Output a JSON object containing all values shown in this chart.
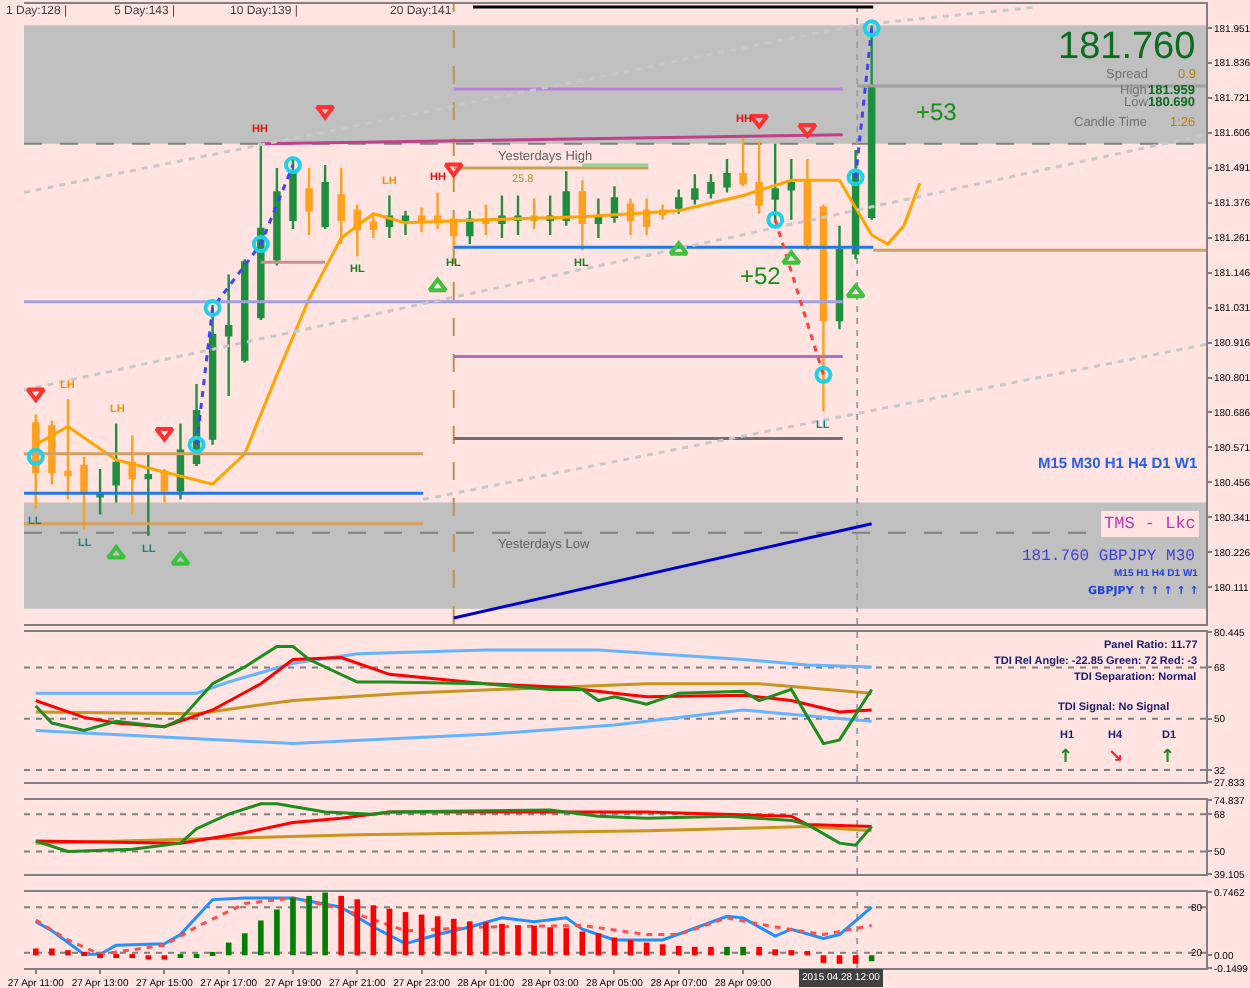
{
  "chart_data": [
    {
      "type": "candlestick",
      "x": [
        "2015-04-27T11:00",
        "2015-04-27T11:30",
        "2015-04-27T12:00",
        "2015-04-27T12:30",
        "2015-04-27T13:00",
        "2015-04-27T13:30",
        "2015-04-27T14:00",
        "2015-04-27T14:30",
        "2015-04-27T15:00",
        "2015-04-27T15:30",
        "2015-04-27T16:00",
        "2015-04-27T16:30",
        "2015-04-27T17:00",
        "2015-04-27T17:30",
        "2015-04-27T18:00",
        "2015-04-27T18:30",
        "2015-04-27T19:00",
        "2015-04-27T19:30",
        "2015-04-27T20:00",
        "2015-04-27T20:30",
        "2015-04-27T21:00",
        "2015-04-27T21:30",
        "2015-04-27T22:00",
        "2015-04-27T22:30",
        "2015-04-27T23:00",
        "2015-04-27T23:30",
        "2015-04-28T00:00",
        "2015-04-28T00:30",
        "2015-04-28T01:00",
        "2015-04-28T01:30",
        "2015-04-28T02:00",
        "2015-04-28T02:30",
        "2015-04-28T03:00",
        "2015-04-28T03:30",
        "2015-04-28T04:00",
        "2015-04-28T04:30",
        "2015-04-28T05:00",
        "2015-04-28T05:30",
        "2015-04-28T06:00",
        "2015-04-28T06:30",
        "2015-04-28T07:00",
        "2015-04-28T07:30",
        "2015-04-28T08:00",
        "2015-04-28T08:30",
        "2015-04-28T09:00",
        "2015-04-28T09:30",
        "2015-04-28T10:00",
        "2015-04-28T10:30",
        "2015-04-28T11:00",
        "2015-04-28T11:30",
        "2015-04-28T12:00",
        "2015-04-28T12:30",
        "2015-04-28T13:00"
      ],
      "ohlc": [
        [
          180.65,
          180.68,
          180.37,
          180.49
        ],
        [
          180.64,
          180.66,
          180.45,
          180.49
        ],
        [
          180.49,
          180.73,
          180.4,
          180.48
        ],
        [
          180.51,
          180.54,
          180.3,
          180.42
        ],
        [
          180.41,
          180.5,
          180.35,
          180.42
        ],
        [
          180.45,
          180.65,
          180.39,
          180.52
        ],
        [
          180.52,
          180.61,
          180.35,
          180.47
        ],
        [
          180.47,
          180.55,
          180.28,
          180.48
        ],
        [
          180.49,
          180.5,
          180.39,
          180.43
        ],
        [
          180.43,
          180.65,
          180.4,
          180.56
        ],
        [
          180.52,
          180.78,
          180.51,
          180.69
        ],
        [
          180.6,
          181.04,
          180.58,
          180.94
        ],
        [
          180.94,
          181.14,
          180.74,
          180.97
        ],
        [
          180.86,
          181.19,
          180.85,
          181.18
        ],
        [
          181.0,
          181.57,
          180.99,
          181.29
        ],
        [
          181.19,
          181.49,
          181.17,
          181.41
        ],
        [
          181.32,
          181.52,
          181.29,
          181.47
        ],
        [
          181.42,
          181.49,
          181.27,
          181.35
        ],
        [
          181.3,
          181.5,
          181.29,
          181.44
        ],
        [
          181.4,
          181.49,
          181.24,
          181.32
        ],
        [
          181.35,
          181.37,
          181.2,
          181.29
        ],
        [
          181.31,
          181.34,
          181.26,
          181.29
        ],
        [
          181.3,
          181.4,
          181.26,
          181.33
        ],
        [
          181.32,
          181.35,
          181.27,
          181.33
        ],
        [
          181.33,
          181.36,
          181.28,
          181.32
        ],
        [
          181.33,
          181.41,
          181.29,
          181.32
        ],
        [
          181.32,
          181.33,
          181.22,
          181.27
        ],
        [
          181.27,
          181.35,
          181.24,
          181.32
        ],
        [
          181.32,
          181.37,
          181.27,
          181.31
        ],
        [
          181.31,
          181.4,
          181.26,
          181.33
        ],
        [
          181.32,
          181.4,
          181.27,
          181.33
        ],
        [
          181.33,
          181.39,
          181.29,
          181.32
        ],
        [
          181.32,
          181.4,
          181.27,
          181.33
        ],
        [
          181.32,
          181.48,
          181.3,
          181.41
        ],
        [
          181.41,
          181.45,
          181.22,
          181.31
        ],
        [
          181.31,
          181.39,
          181.26,
          181.33
        ],
        [
          181.33,
          181.43,
          181.31,
          181.39
        ],
        [
          181.37,
          181.39,
          181.27,
          181.32
        ],
        [
          181.35,
          181.39,
          181.27,
          181.3
        ],
        [
          181.35,
          181.37,
          181.32,
          181.34
        ],
        [
          181.36,
          181.42,
          181.34,
          181.39
        ],
        [
          181.39,
          181.47,
          181.37,
          181.42
        ],
        [
          181.41,
          181.47,
          181.39,
          181.44
        ],
        [
          181.43,
          181.52,
          181.41,
          181.47
        ],
        [
          181.47,
          181.6,
          181.43,
          181.44
        ],
        [
          181.44,
          181.58,
          181.34,
          181.37
        ],
        [
          181.39,
          181.57,
          181.31,
          181.42
        ],
        [
          181.42,
          181.52,
          181.32,
          181.44
        ],
        [
          181.44,
          181.52,
          181.22,
          181.24
        ],
        [
          181.36,
          181.37,
          180.69,
          180.99
        ],
        [
          180.99,
          181.3,
          180.96,
          181.22
        ],
        [
          181.21,
          181.55,
          181.19,
          181.47
        ],
        [
          181.33,
          181.959,
          181.32,
          181.76
        ]
      ],
      "colors": [
        "#ffa020",
        "#ffa020",
        "#ffa020",
        "#ffa020",
        "#1f8f3f",
        "#1f8f3f",
        "#ffa020",
        "#1f8f3f",
        "#ffa020",
        "#1f8f3f",
        "#1f8f3f",
        "#1f8f3f",
        "#1f8f3f",
        "#1f8f3f",
        "#1f8f3f",
        "#1f8f3f",
        "#1f8f3f",
        "#ffa020",
        "#1f8f3f",
        "#ffa020",
        "#ffa020",
        "#ffa020",
        "#1f8f3f",
        "#1f8f3f",
        "#ffa020",
        "#ffa020",
        "#ffa020",
        "#1f8f3f",
        "#ffa020",
        "#1f8f3f",
        "#1f8f3f",
        "#ffa020",
        "#1f8f3f",
        "#1f8f3f",
        "#ffa020",
        "#1f8f3f",
        "#1f8f3f",
        "#ffa020",
        "#ffa020",
        "#ffa020",
        "#1f8f3f",
        "#1f8f3f",
        "#1f8f3f",
        "#1f8f3f",
        "#ffa020",
        "#ffa020",
        "#1f8f3f",
        "#1f8f3f",
        "#ffa020",
        "#ffa020",
        "#1f8f3f",
        "#1f8f3f",
        "#1f8f3f"
      ],
      "xlim": [
        "2015-04-27T10:38",
        "2015-04-28T23:24"
      ],
      "ylim": [
        179.99,
        182.03
      ],
      "yticks": [
        181.951,
        181.836,
        181.721,
        181.606,
        181.491,
        181.376,
        181.261,
        181.146,
        181.031,
        180.916,
        180.801,
        180.686,
        180.571,
        180.456,
        180.341,
        180.226,
        180.111
      ],
      "tick_labels": "y",
      "bands": [
        {
          "axis": "y",
          "from": 181.57,
          "to": 181.96,
          "color": "#c0c0c0"
        },
        {
          "axis": "y",
          "from": 180.04,
          "to": 180.39,
          "color": "#c0c0c0"
        }
      ],
      "ref_lines": [
        {
          "axis": "y",
          "value": 181.57,
          "label": "Yesterdays High",
          "line_style": "dashed",
          "color": "#808080"
        },
        {
          "axis": "y",
          "value": 180.29,
          "label": "Yesterdays Low",
          "line_style": "dashed",
          "color": "#808080"
        },
        {
          "axis": "x",
          "value": "2015-04-28T00:00",
          "line_style": "dashed",
          "color": "#c09050"
        },
        {
          "axis": "x",
          "value": "2015-04-28T12:33",
          "line_style": "dotted",
          "color": "#a0a0a0"
        }
      ],
      "series": [
        {
          "type": "line",
          "color": "#ffa500",
          "x": [
            "2015-04-27T11:00",
            "2015-04-27T12:00",
            "2015-04-27T13:30",
            "2015-04-27T15:00",
            "2015-04-27T16:30",
            "2015-04-27T17:30",
            "2015-04-27T18:30",
            "2015-04-27T19:30",
            "2015-04-27T20:30",
            "2015-04-27T21:30",
            "2015-04-27T22:30",
            "2015-04-28T01:00",
            "2015-04-28T04:00",
            "2015-04-28T07:00",
            "2015-04-28T09:00",
            "2015-04-28T10:30",
            "2015-04-28T12:00",
            "2015-04-28T13:00",
            "2015-04-28T13:30",
            "2015-04-28T14:00",
            "2015-04-28T14:30"
          ],
          "values": [
            180.58,
            180.64,
            180.53,
            180.49,
            180.45,
            180.55,
            180.81,
            181.06,
            181.26,
            181.34,
            181.31,
            181.32,
            181.33,
            181.35,
            181.4,
            181.45,
            181.45,
            181.27,
            181.24,
            181.3,
            181.44
          ]
        },
        {
          "type": "line",
          "color": "#0000cd",
          "x": [
            "2015-04-28T00:00",
            "2015-04-28T13:00"
          ],
          "values": [
            180.01,
            180.32
          ]
        },
        {
          "type": "line",
          "color": "#1e78e6",
          "x": [
            "2015-04-28T00:00",
            "2015-04-28T13:03"
          ],
          "values": [
            181.23,
            181.23
          ]
        },
        {
          "type": "line",
          "color": "#d2a060",
          "x": [
            "2015-04-28T13:03",
            "2015-04-28T23:24"
          ],
          "values": [
            181.22,
            181.22
          ]
        },
        {
          "type": "line",
          "color": "#1e78e6",
          "x": [
            "2015-04-27T10:38",
            "2015-04-27T23:03"
          ],
          "values": [
            180.42,
            180.42
          ]
        },
        {
          "type": "line",
          "color": "#d2a060",
          "x": [
            "2015-04-27T10:38",
            "2015-04-27T23:03"
          ],
          "values": [
            180.55,
            180.55
          ]
        },
        {
          "type": "line",
          "color": "#d2a060",
          "x": [
            "2015-04-27T10:38",
            "2015-04-27T23:03"
          ],
          "values": [
            180.32,
            180.32
          ]
        },
        {
          "type": "line",
          "color": "#c8a050",
          "x": [
            "2015-04-28T00:00",
            "2015-04-28T06:03"
          ],
          "values": [
            181.49,
            181.49
          ]
        },
        {
          "type": "line",
          "color": "#90d090",
          "x": [
            "2015-04-28T04:00",
            "2015-04-28T06:03"
          ],
          "values": [
            181.5,
            181.5
          ]
        },
        {
          "type": "line",
          "color": "#a0a0e0",
          "x": [
            "2015-04-27T10:38",
            "2015-04-28T12:06"
          ],
          "values": [
            181.05,
            181.05
          ]
        },
        {
          "type": "line",
          "color": "#b070c0",
          "x": [
            "2015-04-28T00:00",
            "2015-04-28T12:06"
          ],
          "values": [
            180.87,
            180.87
          ]
        },
        {
          "type": "line",
          "color": "#707070",
          "x": [
            "2015-04-28T00:00",
            "2015-04-28T12:06"
          ],
          "values": [
            180.6,
            180.6
          ]
        },
        {
          "type": "line",
          "color": "#c89090",
          "x": [
            "2015-04-27T18:00",
            "2015-04-27T20:00"
          ],
          "values": [
            181.18,
            181.18
          ]
        },
        {
          "type": "line",
          "color": "#b87fd8",
          "x": [
            "2015-04-28T00:00",
            "2015-04-28T12:06"
          ],
          "values": [
            181.75,
            181.75
          ]
        },
        {
          "type": "line",
          "color": "#c0408a",
          "x": [
            "2015-04-27T18:00",
            "2015-04-28T12:06"
          ],
          "values": [
            181.57,
            181.6
          ]
        },
        {
          "type": "line",
          "color": "#a0a0a0",
          "x": [
            "2015-04-28T12:33",
            "2015-04-28T23:24"
          ],
          "values": [
            181.76,
            181.76
          ]
        },
        {
          "type": "line",
          "color": "#000000",
          "x": [
            "2015-04-28T00:36",
            "2015-04-28T13:03"
          ],
          "values": [
            182.02,
            182.02
          ]
        },
        {
          "type": "line",
          "color": "#c8c8c8",
          "line_style": "dotted",
          "x": [
            "2015-04-27T10:38",
            "2015-04-28T12:30",
            "2015-04-28T18:09"
          ],
          "values": [
            181.41,
            181.96,
            182.02
          ]
        },
        {
          "type": "line",
          "color": "#c8c8c8",
          "line_style": "dotted",
          "x": [
            "2015-04-27T10:38",
            "2015-04-28T23:24"
          ],
          "values": [
            180.76,
            181.6
          ]
        },
        {
          "type": "line",
          "color": "#c8c8c8",
          "line_style": "dotted",
          "x": [
            "2015-04-27T23:03",
            "2015-04-28T23:24"
          ],
          "values": [
            180.4,
            180.91
          ]
        },
        {
          "type": "line",
          "color": "#4040ff",
          "line_style": "dotted",
          "x": [
            "2015-04-27T16:00",
            "2015-04-27T16:30",
            "2015-04-27T18:00",
            "2015-04-27T19:00"
          ],
          "values": [
            180.58,
            181.03,
            181.24,
            181.5
          ]
        },
        {
          "type": "line",
          "color": "#4040ff",
          "line_style": "dotted",
          "x": [
            "2015-04-28T12:30",
            "2015-04-28T13:00"
          ],
          "values": [
            181.46,
            181.95
          ]
        },
        {
          "type": "line",
          "color": "#ff4040",
          "line_style": "dotted",
          "x": [
            "2015-04-28T10:00",
            "2015-04-28T11:30"
          ],
          "values": [
            181.32,
            180.81
          ]
        },
        {
          "type": "scatter",
          "marker": "circle",
          "color": "#20d0e8",
          "x": [
            "2015-04-27T11:00",
            "2015-04-27T16:00",
            "2015-04-27T16:30",
            "2015-04-27T18:00",
            "2015-04-27T19:00",
            "2015-04-28T10:00",
            "2015-04-28T11:30",
            "2015-04-28T12:30",
            "2015-04-28T13:00"
          ],
          "values": [
            180.54,
            180.58,
            181.03,
            181.24,
            181.5,
            181.32,
            180.81,
            181.46,
            181.95
          ]
        },
        {
          "type": "scatter",
          "marker": "triangle-down",
          "color": "#ff3030",
          "x": [
            "2015-04-27T11:00",
            "2015-04-27T15:00",
            "2015-04-27T20:00",
            "2015-04-28T00:00",
            "2015-04-28T09:30",
            "2015-04-28T11:00"
          ],
          "values": [
            180.75,
            180.62,
            181.68,
            181.49,
            181.65,
            181.62
          ]
        },
        {
          "type": "scatter",
          "marker": "triangle",
          "color": "#40c040",
          "x": [
            "2015-04-27T13:30",
            "2015-04-27T15:30",
            "2015-04-27T23:30",
            "2015-04-28T07:00",
            "2015-04-28T10:30",
            "2015-04-28T12:30"
          ],
          "values": [
            180.22,
            180.2,
            181.1,
            181.22,
            181.19,
            181.08
          ]
        }
      ],
      "annotations": [
        "1 Day:128 |",
        "5 Day:143 |",
        "10 Day:139 |",
        "20 Day:141",
        "181.760",
        "Spread",
        "0.9",
        "High",
        "181.959",
        "Low",
        "180.690",
        "Candle Time",
        "1:26",
        "M15 M30 H1 H4 D1 W1",
        "TMS - Lkc",
        "181.760 GBPJPY M30",
        "M15 H1 H4 D1 W1",
        "GBPJPY ↑ ↑ ↑ ↑ ↑",
        "+53",
        "+52",
        "25.8",
        {
          "text": "HH",
          "x": "2015-04-27T18:00",
          "y": 181.57
        },
        {
          "text": "LH",
          "x": "2015-04-27T12:00",
          "y": 180.73
        },
        {
          "text": "LH",
          "x": "2015-04-27T13:30",
          "y": 180.65
        },
        {
          "text": "LL",
          "x": "2015-04-27T11:00",
          "y": 180.37
        },
        {
          "text": "LL",
          "x": "2015-04-27T12:30",
          "y": 180.3
        },
        {
          "text": "LL",
          "x": "2015-04-27T14:30",
          "y": 180.28
        },
        {
          "text": "LH",
          "x": "2015-04-27T22:00",
          "y": 181.4
        },
        {
          "text": "HH",
          "x": "2015-04-27T23:30",
          "y": 181.41
        },
        {
          "text": "HL",
          "x": "2015-04-27T21:00",
          "y": 181.2
        },
        {
          "text": "HL",
          "x": "2015-04-28T00:00",
          "y": 181.22
        },
        {
          "text": "HL",
          "x": "2015-04-28T04:00",
          "y": 181.22
        },
        {
          "text": "HH",
          "x": "2015-04-28T09:00",
          "y": 181.6
        },
        {
          "text": "LL",
          "x": "2015-04-28T11:30",
          "y": 180.69
        }
      ]
    },
    {
      "type": "line",
      "xlim": [
        "2015-04-27T10:38",
        "2015-04-28T23:24"
      ],
      "ylim": [
        27.833,
        80.445
      ],
      "yticks": [
        80.445,
        68,
        50,
        32,
        27.833
      ],
      "tick_labels": "y",
      "ref_lines": [
        {
          "axis": "y",
          "value": 68,
          "line_style": "dotted",
          "color": "#808080"
        },
        {
          "axis": "y",
          "value": 50,
          "line_style": "dotted",
          "color": "#808080"
        },
        {
          "axis": "y",
          "value": 32,
          "line_style": "dotted",
          "color": "#808080"
        },
        {
          "axis": "x",
          "value": "2015-04-28T12:33",
          "line_style": "dotted",
          "color": "#a0a0a0"
        }
      ],
      "series": [
        {
          "color": "#64b4ff",
          "x": [
            "2015-04-27T11:00",
            "2015-04-27T16:00",
            "2015-04-27T17:00",
            "2015-04-27T19:00",
            "2015-04-27T21:00",
            "2015-04-28T01:00",
            "2015-04-28T04:30",
            "2015-04-28T09:00",
            "2015-04-28T11:00",
            "2015-04-28T13:00"
          ],
          "values": [
            59.0,
            59.0,
            62.9,
            69.5,
            72.8,
            74.1,
            74.1,
            70.8,
            68.9,
            68.2
          ]
        },
        {
          "color": "#64b4ff",
          "x": [
            "2015-04-27T11:00",
            "2015-04-27T19:00",
            "2015-04-28T01:00",
            "2015-04-28T05:00",
            "2015-04-28T09:00",
            "2015-04-28T11:00",
            "2015-04-28T13:00"
          ],
          "values": [
            45.9,
            41.3,
            44.6,
            47.8,
            53.1,
            51.1,
            49.1
          ]
        },
        {
          "color": "#c8961e",
          "x": [
            "2015-04-27T11:00",
            "2015-04-27T16:00",
            "2015-04-27T19:00",
            "2015-04-27T22:30",
            "2015-04-28T06:00",
            "2015-04-28T09:30",
            "2015-04-28T13:00"
          ],
          "values": [
            52.4,
            51.8,
            56.4,
            59.0,
            62.3,
            62.3,
            59.0
          ]
        },
        {
          "color": "#ff0000",
          "x": [
            "2015-04-27T11:00",
            "2015-04-27T12:30",
            "2015-04-27T13:30",
            "2015-04-27T15:00",
            "2015-04-27T16:30",
            "2015-04-27T18:00",
            "2015-04-27T19:00",
            "2015-04-27T20:30",
            "2015-04-27T22:00",
            "2015-04-28T01:00",
            "2015-04-28T03:30",
            "2015-04-28T05:00",
            "2015-04-28T06:00",
            "2015-04-28T09:00",
            "2015-04-28T10:30",
            "2015-04-28T12:00",
            "2015-04-28T13:00"
          ],
          "values": [
            56.4,
            50.5,
            48.5,
            47.2,
            53.1,
            62.3,
            70.8,
            71.5,
            65.6,
            62.3,
            61.0,
            59.0,
            57.7,
            58.3,
            56.4,
            52.4,
            53.1
          ]
        },
        {
          "color": "#1e8c1e",
          "x": [
            "2015-04-27T11:00",
            "2015-04-27T11:30",
            "2015-04-27T12:30",
            "2015-04-27T13:30",
            "2015-04-27T15:00",
            "2015-04-27T15:30",
            "2015-04-27T16:30",
            "2015-04-27T17:30",
            "2015-04-27T18:30",
            "2015-04-27T19:00",
            "2015-04-27T19:30",
            "2015-04-27T21:00",
            "2015-04-27T22:00",
            "2015-04-28T01:00",
            "2015-04-28T03:00",
            "2015-04-28T04:00",
            "2015-04-28T04:30",
            "2015-04-28T05:00",
            "2015-04-28T06:00",
            "2015-04-28T07:00",
            "2015-04-28T09:00",
            "2015-04-28T09:30",
            "2015-04-28T10:30",
            "2015-04-28T11:30",
            "2015-04-28T12:00",
            "2015-04-28T13:00"
          ],
          "values": [
            54.5,
            48.5,
            45.9,
            49.1,
            47.2,
            49.8,
            62.3,
            68.2,
            75.4,
            75.4,
            70.8,
            62.9,
            62.9,
            62.3,
            60.3,
            60.3,
            56.4,
            57.7,
            55.1,
            59.0,
            59.7,
            56.4,
            60.3,
            41.3,
            42.6,
            60.3
          ]
        }
      ],
      "annotations": [
        "Panel Ratio: 11.77",
        "TDI Rel Angle: -22.85 Green: 72 Red: -3",
        "TDI Separation: Normal",
        "TDI Signal: No Signal",
        "H1",
        "H4",
        "D1",
        "↑",
        "↘",
        "↑"
      ]
    },
    {
      "type": "line",
      "xlim": [
        "2015-04-27T10:38",
        "2015-04-28T23:24"
      ],
      "ylim": [
        39.105,
        74.837
      ],
      "yticks": [
        74.837,
        68,
        50,
        39.105
      ],
      "tick_labels": "y",
      "ref_lines": [
        {
          "axis": "y",
          "value": 68,
          "line_style": "dotted",
          "color": "#808080"
        },
        {
          "axis": "y",
          "value": 50,
          "line_style": "dotted",
          "color": "#808080"
        },
        {
          "axis": "x",
          "value": "2015-04-28T12:33",
          "line_style": "dotted",
          "color": "#a0a0a0"
        }
      ],
      "series": [
        {
          "color": "#c8961e",
          "x": [
            "2015-04-27T11:00",
            "2015-04-27T16:00",
            "2015-04-27T21:00",
            "2015-04-28T06:00",
            "2015-04-28T11:00",
            "2015-04-28T13:00"
          ],
          "values": [
            54,
            56,
            58,
            60,
            62,
            60
          ]
        },
        {
          "color": "#ff0000",
          "x": [
            "2015-04-27T11:00",
            "2015-04-27T15:30",
            "2015-04-27T17:30",
            "2015-04-27T19:00",
            "2015-04-27T20:30",
            "2015-04-27T22:00",
            "2015-04-28T06:00",
            "2015-04-28T10:30",
            "2015-04-28T11:00",
            "2015-04-28T13:00"
          ],
          "values": [
            55,
            54,
            59,
            64,
            66,
            69,
            69,
            67,
            63,
            62
          ]
        },
        {
          "color": "#1e8c1e",
          "x": [
            "2015-04-27T11:00",
            "2015-04-27T12:00",
            "2015-04-27T14:00",
            "2015-04-27T15:30",
            "2015-04-27T16:00",
            "2015-04-27T17:00",
            "2015-04-27T18:00",
            "2015-04-27T18:30",
            "2015-04-27T20:00",
            "2015-04-27T21:30",
            "2015-04-27T22:00",
            "2015-04-28T03:00",
            "2015-04-28T04:30",
            "2015-04-28T06:00",
            "2015-04-28T08:30",
            "2015-04-28T10:30",
            "2015-04-28T11:00",
            "2015-04-28T12:00",
            "2015-04-28T12:30",
            "2015-04-28T13:00"
          ],
          "values": [
            55,
            50,
            51,
            54,
            61,
            68,
            73,
            73,
            69,
            68,
            69,
            70,
            67,
            66,
            67,
            65,
            63,
            54,
            53,
            62
          ]
        }
      ]
    },
    {
      "type": "line",
      "xlim": [
        "2015-04-27T10:38",
        "2015-04-28T23:24"
      ],
      "ylim": [
        0,
        100
      ],
      "yticks": [
        80,
        20
      ],
      "y2lim": [
        -0.1499,
        0.7462
      ],
      "y2ticks": [
        0.7462,
        {
          "value": 0,
          "label": "0.00"
        },
        -0.1499
      ],
      "xticks": [
        {
          "value": "2015-04-27T11:00",
          "label": "27 Apr 11:00"
        },
        {
          "value": "2015-04-27T13:00",
          "label": "27 Apr 13:00"
        },
        {
          "value": "2015-04-27T15:00",
          "label": "27 Apr 15:00"
        },
        {
          "value": "2015-04-27T17:00",
          "label": "27 Apr 17:00"
        },
        {
          "value": "2015-04-27T19:00",
          "label": "27 Apr 19:00"
        },
        {
          "value": "2015-04-27T21:00",
          "label": "27 Apr 21:00"
        },
        {
          "value": "2015-04-27T23:00",
          "label": "27 Apr 23:00"
        },
        {
          "value": "2015-04-28T01:00",
          "label": "28 Apr 01:00"
        },
        {
          "value": "2015-04-28T03:00",
          "label": "28 Apr 03:00"
        },
        {
          "value": "2015-04-28T05:00",
          "label": "28 Apr 05:00"
        },
        {
          "value": "2015-04-28T07:00",
          "label": "28 Apr 07:00"
        },
        {
          "value": "2015-04-28T09:00",
          "label": "28 Apr 09:00"
        },
        {
          "value": "2015-04-28T11:00",
          "label": null
        },
        {
          "value": "2015-04-28T13:00",
          "label": null
        }
      ],
      "ref_lines": [
        {
          "axis": "y",
          "value": 80,
          "line_style": "dotted",
          "color": "#808080"
        },
        {
          "axis": "y",
          "value": 20,
          "line_style": "dotted",
          "color": "#808080"
        },
        {
          "axis": "x",
          "value": "2015-04-28T12:33",
          "line_style": "dotted",
          "color": "#a0a0a0"
        }
      ],
      "series": [
        {
          "type": "bar",
          "axis": "y2",
          "x": [
            "2015-04-27T11:00",
            "2015-04-27T11:30",
            "2015-04-27T12:00",
            "2015-04-27T12:30",
            "2015-04-27T13:00",
            "2015-04-27T13:30",
            "2015-04-27T14:00",
            "2015-04-27T14:30",
            "2015-04-27T15:00",
            "2015-04-27T15:30",
            "2015-04-27T16:00",
            "2015-04-27T16:30",
            "2015-04-27T17:00",
            "2015-04-27T17:30",
            "2015-04-27T18:00",
            "2015-04-27T18:30",
            "2015-04-27T19:00",
            "2015-04-27T19:30",
            "2015-04-27T20:00",
            "2015-04-27T20:30",
            "2015-04-27T21:00",
            "2015-04-27T21:30",
            "2015-04-27T22:00",
            "2015-04-27T22:30",
            "2015-04-27T23:00",
            "2015-04-27T23:30",
            "2015-04-28T00:00",
            "2015-04-28T00:30",
            "2015-04-28T01:00",
            "2015-04-28T01:30",
            "2015-04-28T02:00",
            "2015-04-28T02:30",
            "2015-04-28T03:00",
            "2015-04-28T03:30",
            "2015-04-28T04:00",
            "2015-04-28T04:30",
            "2015-04-28T05:00",
            "2015-04-28T05:30",
            "2015-04-28T06:00",
            "2015-04-28T06:30",
            "2015-04-28T07:00",
            "2015-04-28T07:30",
            "2015-04-28T08:00",
            "2015-04-28T08:30",
            "2015-04-28T09:00",
            "2015-04-28T09:30",
            "2015-04-28T10:00",
            "2015-04-28T10:30",
            "2015-04-28T11:00",
            "2015-04-28T11:30",
            "2015-04-28T12:00",
            "2015-04-28T12:30",
            "2015-04-28T13:00"
          ],
          "values": [
            0.08,
            0.08,
            0.06,
            0.02,
            -0.01,
            -0.02,
            -0.03,
            -0.05,
            -0.05,
            -0.03,
            -0.02,
            0.04,
            0.15,
            0.26,
            0.41,
            0.54,
            0.68,
            0.7,
            0.74,
            0.7,
            0.66,
            0.59,
            0.55,
            0.51,
            0.48,
            0.46,
            0.43,
            0.4,
            0.39,
            0.37,
            0.35,
            0.35,
            0.33,
            0.32,
            0.28,
            0.26,
            0.21,
            0.18,
            0.15,
            0.13,
            0.11,
            0.1,
            0.1,
            0.1,
            0.1,
            0.1,
            0.07,
            0.06,
            0.05,
            -0.09,
            -0.1,
            -0.1,
            -0.07
          ],
          "colors": [
            "#ff0000",
            "#ff0000",
            "#ff0000",
            "#ff0000",
            "#ff0000",
            "#ff0000",
            "#ff0000",
            "#ff0000",
            "#ff0000",
            "#008000",
            "#008000",
            "#008000",
            "#008000",
            "#008000",
            "#008000",
            "#008000",
            "#008000",
            "#008000",
            "#008000",
            "#ff0000",
            "#ff0000",
            "#ff0000",
            "#ff0000",
            "#ff0000",
            "#ff0000",
            "#ff0000",
            "#ff0000",
            "#ff0000",
            "#ff0000",
            "#ff0000",
            "#ff0000",
            "#ff0000",
            "#ff0000",
            "#ff0000",
            "#ff0000",
            "#ff0000",
            "#ff0000",
            "#ff0000",
            "#ff0000",
            "#ff0000",
            "#ff0000",
            "#ff0000",
            "#ff0000",
            "#008000",
            "#008000",
            "#ff0000",
            "#ff0000",
            "#ff0000",
            "#ff0000",
            "#ff0000",
            "#ff0000",
            "#ff0000",
            "#008000"
          ]
        },
        {
          "color": "#1e90ff",
          "x": [
            "2015-04-27T11:00",
            "2015-04-27T11:30",
            "2015-04-27T12:30",
            "2015-04-27T13:00",
            "2015-04-27T13:30",
            "2015-04-27T15:00",
            "2015-04-27T15:30",
            "2015-04-27T16:30",
            "2015-04-27T17:30",
            "2015-04-27T19:00",
            "2015-04-27T20:30",
            "2015-04-27T21:30",
            "2015-04-27T22:30",
            "2015-04-27T23:30",
            "2015-04-28T00:30",
            "2015-04-28T01:30",
            "2015-04-28T02:30",
            "2015-04-28T03:30",
            "2015-04-28T04:00",
            "2015-04-28T05:00",
            "2015-04-28T06:30",
            "2015-04-28T08:30",
            "2015-04-28T09:00",
            "2015-04-28T10:00",
            "2015-04-28T10:30",
            "2015-04-28T11:30",
            "2015-04-28T12:00",
            "2015-04-28T13:00"
          ],
          "values": [
            61,
            49,
            18,
            18,
            30,
            32,
            44,
            90,
            92,
            92,
            80,
            54,
            32,
            44,
            54,
            66,
            61,
            66,
            51,
            37,
            37,
            68,
            66,
            42,
            51,
            39,
            44,
            80
          ]
        },
        {
          "color": "#ff5050",
          "line_style": "dotted",
          "x": [
            "2015-04-27T11:00",
            "2015-04-27T12:00",
            "2015-04-27T13:00",
            "2015-04-27T15:00",
            "2015-04-27T16:00",
            "2015-04-27T17:30",
            "2015-04-27T19:00",
            "2015-04-27T20:30",
            "2015-04-27T22:30",
            "2015-04-28T01:00",
            "2015-04-28T04:00",
            "2015-04-28T06:00",
            "2015-04-28T07:00",
            "2015-04-28T08:30",
            "2015-04-28T10:00",
            "2015-04-28T11:30",
            "2015-04-28T13:00"
          ],
          "values": [
            63,
            37,
            18,
            30,
            54,
            85,
            92,
            78,
            49,
            54,
            56,
            44,
            44,
            66,
            54,
            44,
            56
          ]
        }
      ],
      "annotations": [
        "2015.04.28 12:00"
      ]
    }
  ]
}
